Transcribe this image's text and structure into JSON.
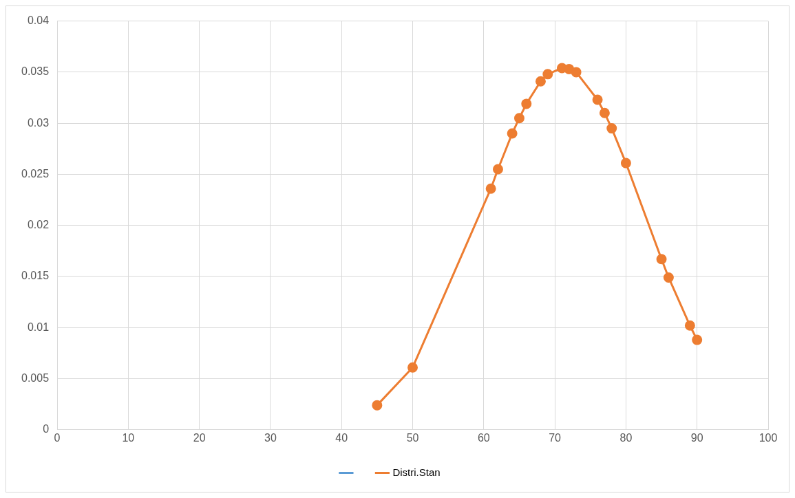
{
  "chart_data": {
    "type": "line",
    "x": [
      45,
      50,
      61,
      62,
      64,
      65,
      66,
      68,
      69,
      71,
      72,
      73,
      76,
      77,
      78,
      80,
      85,
      86,
      89,
      90
    ],
    "series": [
      {
        "color": "#5b9bd5",
        "values": [
          null,
          null,
          null,
          null,
          null,
          null,
          null,
          null,
          null,
          null,
          null,
          null,
          null,
          null,
          null,
          null,
          null,
          null,
          null,
          null
        ]
      },
      {
        "name": "Distri.Stan",
        "color": "#ed7d31",
        "values": [
          0.0024,
          0.0061,
          0.0236,
          0.0255,
          0.029,
          0.0305,
          0.0319,
          0.0341,
          0.0348,
          0.0354,
          0.0353,
          0.035,
          0.0323,
          0.031,
          0.0295,
          0.0261,
          0.0167,
          0.0149,
          0.0102,
          0.0088
        ]
      }
    ],
    "xlim": [
      0,
      100
    ],
    "xticks": [
      0,
      10,
      20,
      30,
      40,
      50,
      60,
      70,
      80,
      90,
      100
    ],
    "ylim": [
      0,
      0.04
    ],
    "yticks": [
      0,
      0.005,
      0.01,
      0.015,
      0.02,
      0.025,
      0.03,
      0.035,
      0.04
    ],
    "grid": true,
    "legend": "bottom",
    "marker": "circle",
    "line_style": "solid"
  }
}
